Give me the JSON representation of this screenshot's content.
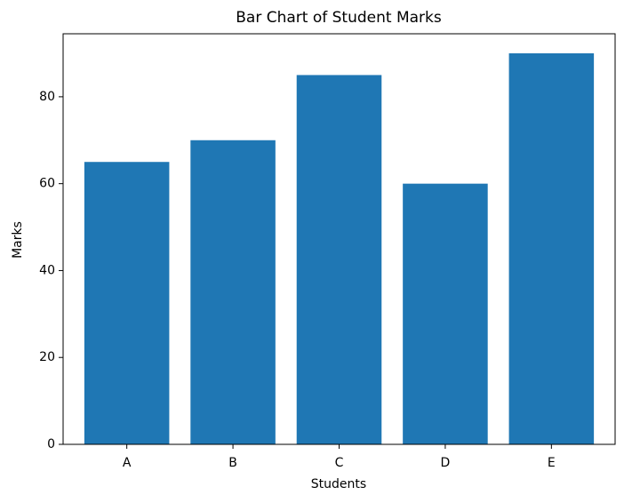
{
  "chart_data": {
    "type": "bar",
    "title": "Bar Chart of Student Marks",
    "x_label": "Students",
    "y_label": "Marks",
    "categories": [
      "A",
      "B",
      "C",
      "D",
      "E"
    ],
    "values": [
      65,
      70,
      85,
      60,
      90
    ],
    "color": "#1f77b4",
    "ylim": [
      0,
      94.5
    ],
    "yticks": [
      0,
      20,
      40,
      60,
      80
    ],
    "grid": false
  }
}
